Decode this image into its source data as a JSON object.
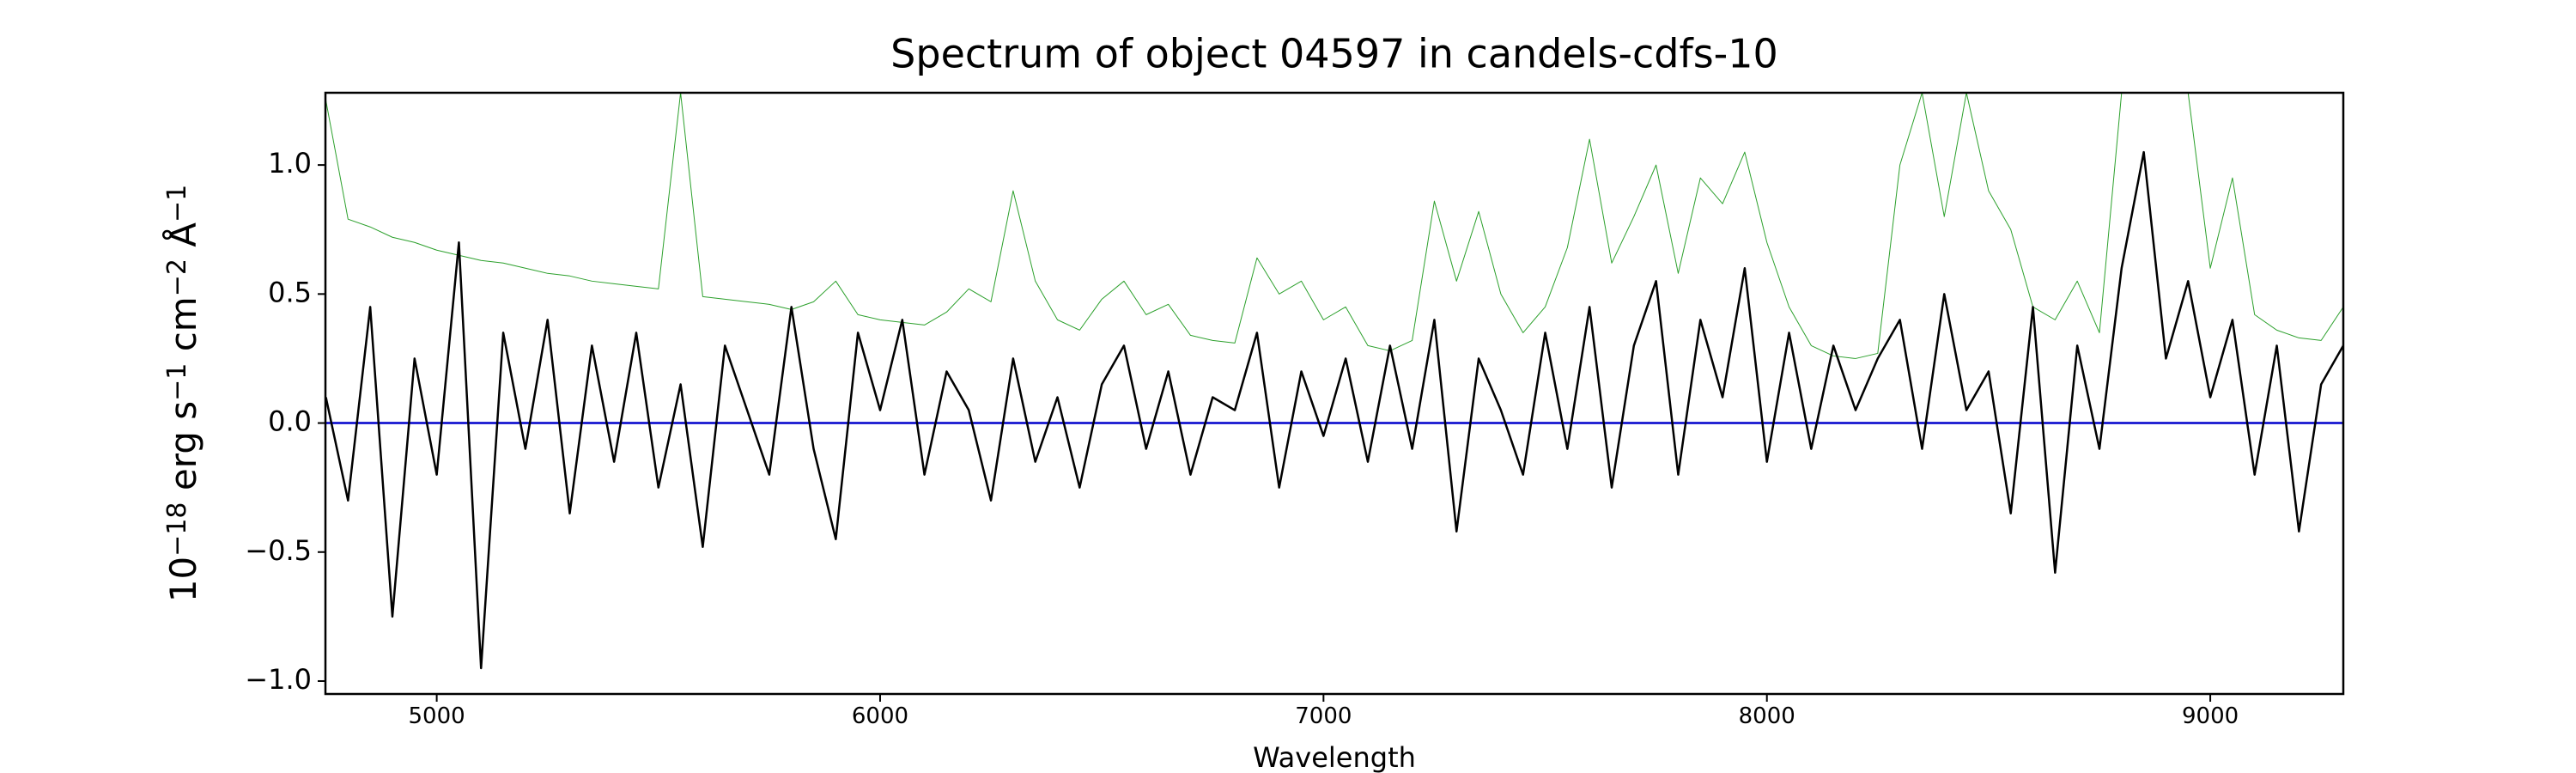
{
  "chart_data": {
    "type": "line",
    "title": "Spectrum of object 04597 in candels-cdfs-10",
    "xlabel": "Wavelength",
    "ylabel": [
      [
        "10",
        "−18"
      ],
      [
        " erg s",
        "−1"
      ],
      [
        " cm",
        "−2"
      ],
      [
        " Å",
        "−1"
      ]
    ],
    "xlim": [
      4749,
      9300
    ],
    "ylim": [
      -1.05,
      1.28
    ],
    "xticks": [
      5000,
      6000,
      7000,
      8000,
      9000
    ],
    "yticks": [
      {
        "value": -1,
        "label": "−1.0"
      },
      {
        "value": -0.5,
        "label": "−0.5"
      },
      {
        "value": 0,
        "label": "0.0"
      },
      0.5,
      {
        "value": 1,
        "label": "1.0"
      }
    ],
    "grid": false,
    "series": [
      {
        "color": "#2ca02c",
        "width": 1,
        "x": [
          4750,
          4800,
          4850,
          4900,
          4950,
          5000,
          5050,
          5100,
          5150,
          5200,
          5250,
          5300,
          5350,
          5400,
          5450,
          5500,
          5550,
          5600,
          5650,
          5700,
          5750,
          5800,
          5850,
          5900,
          5950,
          6000,
          6050,
          6100,
          6150,
          6200,
          6250,
          6300,
          6350,
          6400,
          6450,
          6500,
          6550,
          6600,
          6650,
          6700,
          6750,
          6800,
          6850,
          6900,
          6950,
          7000,
          7050,
          7100,
          7150,
          7200,
          7250,
          7300,
          7350,
          7400,
          7450,
          7500,
          7550,
          7600,
          7650,
          7700,
          7750,
          7800,
          7850,
          7900,
          7950,
          8000,
          8050,
          8100,
          8150,
          8200,
          8250,
          8300,
          8350,
          8400,
          8450,
          8500,
          8550,
          8600,
          8650,
          8700,
          8750,
          8800,
          8850,
          8900,
          8950,
          9000,
          9050,
          9100,
          9150,
          9200,
          9250,
          9300
        ],
        "values": [
          1.25,
          0.79,
          0.76,
          0.72,
          0.7,
          0.67,
          0.65,
          0.63,
          0.62,
          0.6,
          0.58,
          0.57,
          0.55,
          0.54,
          0.53,
          0.52,
          1.28,
          0.49,
          0.48,
          0.47,
          0.46,
          0.44,
          0.47,
          0.55,
          0.42,
          0.4,
          0.39,
          0.38,
          0.43,
          0.52,
          0.47,
          0.9,
          0.55,
          0.4,
          0.36,
          0.48,
          0.55,
          0.42,
          0.46,
          0.34,
          0.32,
          0.31,
          0.64,
          0.5,
          0.55,
          0.4,
          0.45,
          0.3,
          0.28,
          0.32,
          0.86,
          0.55,
          0.82,
          0.5,
          0.35,
          0.45,
          0.68,
          1.1,
          0.62,
          0.8,
          1.0,
          0.58,
          0.95,
          0.85,
          1.05,
          0.7,
          0.45,
          0.3,
          0.26,
          0.25,
          0.27,
          1.0,
          1.28,
          0.8,
          1.28,
          0.9,
          0.75,
          0.45,
          0.4,
          0.55,
          0.35,
          1.28,
          1.28,
          1.28,
          1.28,
          0.6,
          0.95,
          0.42,
          0.36,
          0.33,
          0.32,
          0.45
        ]
      },
      {
        "color": "#0000cc",
        "width": 2.5,
        "x": [
          4749,
          9300
        ],
        "values": [
          0,
          0
        ]
      },
      {
        "color": "#000000",
        "width": 2.5,
        "x": [
          4750,
          4800,
          4850,
          4900,
          4950,
          5000,
          5050,
          5100,
          5150,
          5200,
          5250,
          5300,
          5350,
          5400,
          5450,
          5500,
          5550,
          5600,
          5650,
          5700,
          5750,
          5800,
          5850,
          5900,
          5950,
          6000,
          6050,
          6100,
          6150,
          6200,
          6250,
          6300,
          6350,
          6400,
          6450,
          6500,
          6550,
          6600,
          6650,
          6700,
          6750,
          6800,
          6850,
          6900,
          6950,
          7000,
          7050,
          7100,
          7150,
          7200,
          7250,
          7300,
          7350,
          7400,
          7450,
          7500,
          7550,
          7600,
          7650,
          7700,
          7750,
          7800,
          7850,
          7900,
          7950,
          8000,
          8050,
          8100,
          8150,
          8200,
          8250,
          8300,
          8350,
          8400,
          8450,
          8500,
          8550,
          8600,
          8650,
          8700,
          8750,
          8800,
          8850,
          8900,
          8950,
          9000,
          9050,
          9100,
          9150,
          9200,
          9250,
          9300
        ],
        "values": [
          0.1,
          -0.3,
          0.45,
          -0.75,
          0.25,
          -0.2,
          0.7,
          -0.95,
          0.35,
          -0.1,
          0.4,
          -0.35,
          0.3,
          -0.15,
          0.35,
          -0.25,
          0.15,
          -0.48,
          0.3,
          0.05,
          -0.2,
          0.45,
          -0.1,
          -0.45,
          0.35,
          0.05,
          0.4,
          -0.2,
          0.2,
          0.05,
          -0.3,
          0.25,
          -0.15,
          0.1,
          -0.25,
          0.15,
          0.3,
          -0.1,
          0.2,
          -0.2,
          0.1,
          0.05,
          0.35,
          -0.25,
          0.2,
          -0.05,
          0.25,
          -0.15,
          0.3,
          -0.1,
          0.4,
          -0.42,
          0.25,
          0.05,
          -0.2,
          0.35,
          -0.1,
          0.45,
          -0.25,
          0.3,
          0.55,
          -0.2,
          0.4,
          0.1,
          0.6,
          -0.15,
          0.35,
          -0.1,
          0.3,
          0.05,
          0.25,
          0.4,
          -0.1,
          0.5,
          0.05,
          0.2,
          -0.35,
          0.45,
          -0.58,
          0.3,
          -0.1,
          0.6,
          1.05,
          0.25,
          0.55,
          0.1,
          0.4,
          -0.2,
          0.3,
          -0.42,
          0.15,
          0.3
        ]
      }
    ]
  }
}
